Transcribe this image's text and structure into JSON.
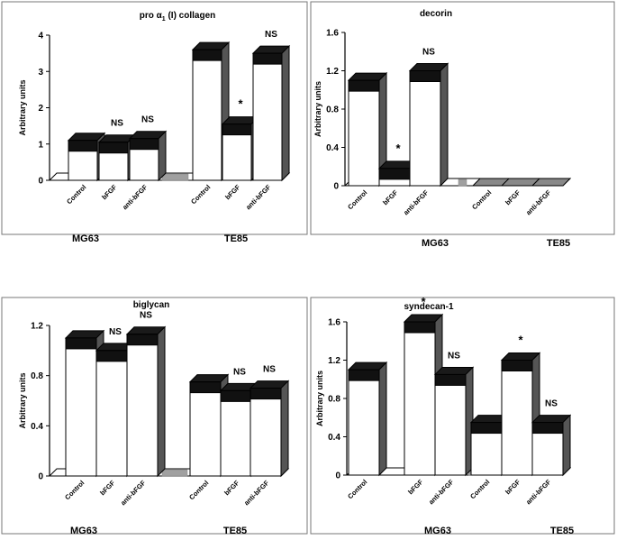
{
  "figure": {
    "y_axis_label": "Arbitrary units",
    "group_labels": [
      "MG63",
      "TE85"
    ],
    "bar_labels": [
      "Control",
      "bFGF",
      "anti-bFGF"
    ]
  },
  "chart_data": [
    {
      "type": "bar",
      "title": "pro α1 (I) collagen",
      "title_prefix": "pro α",
      "title_sub": "1",
      "title_suffix": " (I) collagen",
      "ylabel": "Arbitrary units",
      "ylim": [
        0,
        4
      ],
      "yticks": [
        "0",
        "1",
        "2",
        "3",
        "4"
      ],
      "groups": [
        "MG63",
        "TE85"
      ],
      "categories": [
        "Control",
        "bFGF",
        "anti-bFGF"
      ],
      "series": [
        {
          "name": "MG63",
          "values": [
            1.1,
            1.05,
            1.15
          ],
          "annotations": [
            "",
            "NS",
            "NS"
          ]
        },
        {
          "name": "TE85",
          "values": [
            3.6,
            1.55,
            3.5
          ],
          "annotations": [
            "",
            "*",
            "NS"
          ]
        }
      ],
      "grid": false,
      "legend": "none"
    },
    {
      "type": "bar",
      "title": "decorin",
      "ylabel": "Arbitrary units",
      "ylim": [
        0,
        1.6
      ],
      "yticks": [
        "0",
        "0.4",
        "0.8",
        "1.2",
        "1.6"
      ],
      "groups": [
        "MG63",
        "TE85"
      ],
      "categories": [
        "Control",
        "bFGF",
        "anti-bFGF"
      ],
      "series": [
        {
          "name": "MG63",
          "values": [
            1.1,
            0.18,
            1.2
          ],
          "annotations": [
            "",
            "*",
            "NS"
          ]
        },
        {
          "name": "TE85",
          "values": [
            0,
            0,
            0
          ],
          "annotations": [
            "",
            "",
            ""
          ]
        }
      ],
      "grid": false,
      "legend": "none"
    },
    {
      "type": "bar",
      "title": "biglycan",
      "ylabel": "Arbitrary units",
      "ylim": [
        0,
        1.2
      ],
      "yticks": [
        "0",
        "0.4",
        "0.8",
        "1.2"
      ],
      "groups": [
        "MG63",
        "TE85"
      ],
      "categories": [
        "Control",
        "bFGF",
        "anti-bFGF"
      ],
      "series": [
        {
          "name": "MG63",
          "values": [
            1.1,
            1.0,
            1.13
          ],
          "annotations": [
            "",
            "NS",
            "NS"
          ]
        },
        {
          "name": "TE85",
          "values": [
            0.75,
            0.68,
            0.7
          ],
          "annotations": [
            "",
            "NS",
            "NS"
          ]
        }
      ],
      "grid": false,
      "legend": "none"
    },
    {
      "type": "bar",
      "title": "syndecan-1",
      "ylabel": "Arbitrary units",
      "ylim": [
        0,
        1.6
      ],
      "yticks": [
        "0",
        "0.4",
        "0.8",
        "1.2",
        "1.6"
      ],
      "groups": [
        "MG63",
        "TE85"
      ],
      "categories": [
        "Control",
        "bFGF",
        "anti-bFGF"
      ],
      "series": [
        {
          "name": "MG63",
          "values": [
            1.1,
            1.6,
            1.05
          ],
          "annotations": [
            "",
            "*",
            "NS"
          ]
        },
        {
          "name": "TE85",
          "values": [
            0.55,
            1.2,
            0.55
          ],
          "annotations": [
            "",
            "*",
            "NS"
          ]
        }
      ],
      "grid": false,
      "legend": "none"
    }
  ]
}
